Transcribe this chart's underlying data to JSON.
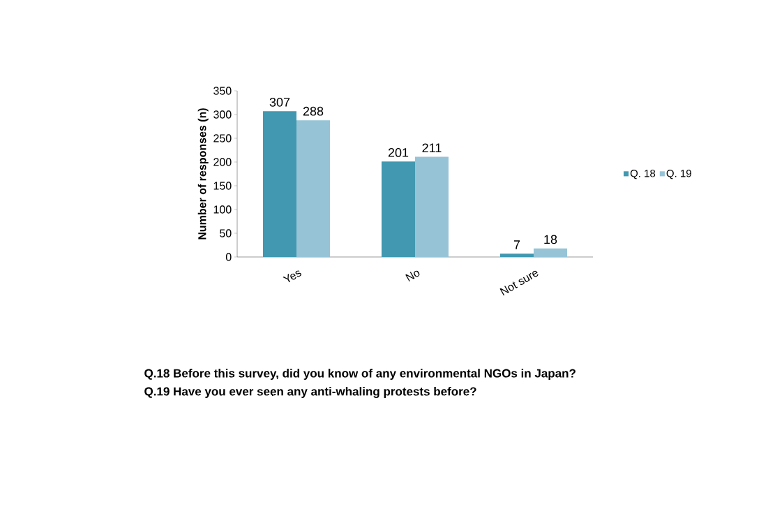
{
  "chart_data": {
    "type": "bar",
    "ylabel": "Number of responses (n)",
    "categories": [
      "Yes",
      "No",
      "Not sure"
    ],
    "series": [
      {
        "name": "Q. 18",
        "color": "#4198b0",
        "values": [
          307,
          201,
          7
        ]
      },
      {
        "name": "Q. 19",
        "color": "#96c4d6",
        "values": [
          288,
          211,
          18
        ]
      }
    ],
    "ylim": [
      0,
      350
    ],
    "yticks": [
      0,
      50,
      100,
      150,
      200,
      250,
      300,
      350
    ],
    "data_labels": true,
    "legend": "right",
    "grid": false,
    "annotations": [
      "Q.18 Before this survey, did you know of any environmental NGOs in Japan?",
      "Q.19 Have you ever seen any anti-whaling protests before?"
    ]
  }
}
